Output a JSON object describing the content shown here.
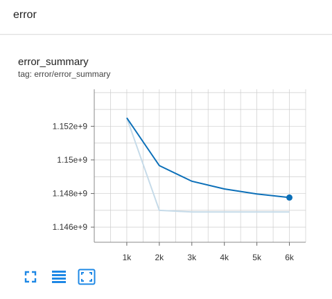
{
  "section": {
    "title": "error"
  },
  "card": {
    "title": "error_summary",
    "tag": "tag: error/error_summary"
  },
  "toolbar": {
    "fullscreen_icon": "fullscreen-icon",
    "lines_icon": "toggle-lines-icon",
    "fit_icon": "fit-domain-icon"
  },
  "colors": {
    "series": "#0b6fb8",
    "raw_series": "#c6dbe9",
    "grid": "#cccccc",
    "accent": "#1e88e5"
  },
  "chart_data": {
    "type": "line",
    "title": "error_summary",
    "xlabel": "",
    "ylabel": "",
    "xlim": [
      0,
      6500
    ],
    "ylim": [
      1145100000.0,
      1154200000.0
    ],
    "x_ticks": [
      1000,
      2000,
      3000,
      4000,
      5000,
      6000
    ],
    "x_tick_labels": [
      "1k",
      "2k",
      "3k",
      "4k",
      "5k",
      "6k"
    ],
    "y_ticks": [
      1146000000.0,
      1148000000.0,
      1150000000.0,
      1152000000.0
    ],
    "y_tick_labels": [
      "1.146e+9",
      "1.148e+9",
      "1.15e+9",
      "1.152e+9"
    ],
    "grid": true,
    "series": [
      {
        "x": [
          1000,
          2000,
          3000,
          4000,
          5000,
          6000
        ],
        "values": [
          1152500000.0,
          1149660000.0,
          1148730000.0,
          1148270000.0,
          1147970000.0,
          1147760000.0
        ]
      },
      {
        "x": [
          1000,
          2000,
          3000,
          4000,
          5000,
          6000
        ],
        "values": [
          1152500000.0,
          1147000000.0,
          1146900000.0,
          1146900000.0,
          1146900000.0,
          1146900000.0
        ]
      }
    ]
  }
}
